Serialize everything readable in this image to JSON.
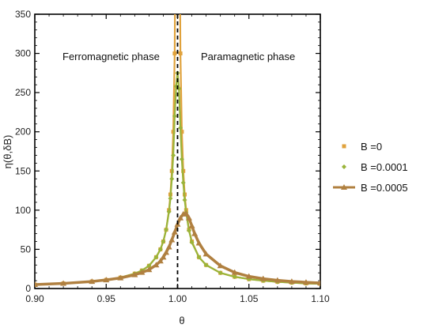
{
  "chart_data": {
    "type": "line",
    "title": "",
    "xlabel": "θ",
    "ylabel": "η(θ,δB)",
    "xlim": [
      0.9,
      1.1
    ],
    "ylim": [
      0,
      350
    ],
    "xticks": [
      "0.90",
      "0.95",
      "1.00",
      "1.05",
      "1.10"
    ],
    "yticks": [
      "0",
      "50",
      "100",
      "150",
      "200",
      "250",
      "300",
      "350"
    ],
    "grid": false,
    "legend_position": "right",
    "annotations": {
      "left": "Ferromagnetic phase",
      "right": "Paramagnetic phase"
    },
    "critical_line_x": 1.0,
    "series": [
      {
        "name": "B =0",
        "color": "#e0a23c",
        "marker": "square",
        "x": [
          0.9,
          0.92,
          0.94,
          0.95,
          0.96,
          0.97,
          0.975,
          0.98,
          0.985,
          0.988,
          0.99,
          0.992,
          0.994,
          0.995,
          0.996,
          0.997,
          0.998,
          0.999,
          1.001,
          1.002,
          1.003,
          1.004,
          1.005,
          1.006,
          1.008,
          1.01,
          1.015,
          1.02,
          1.03,
          1.04,
          1.05,
          1.06,
          1.07,
          1.08,
          1.09,
          1.1
        ],
        "y": [
          5,
          6.5,
          9,
          11,
          14,
          19,
          23,
          29,
          40,
          50,
          60,
          75,
          100,
          120,
          150,
          200,
          300,
          600,
          600,
          300,
          200,
          150,
          120,
          100,
          75,
          60,
          40,
          30,
          20,
          15,
          12,
          10,
          8.5,
          7.5,
          6.5,
          6
        ]
      },
      {
        "name": "B =0.0001",
        "color": "#9ab43a",
        "marker": "diamond",
        "x": [
          0.9,
          0.92,
          0.94,
          0.95,
          0.96,
          0.97,
          0.975,
          0.98,
          0.985,
          0.988,
          0.99,
          0.992,
          0.994,
          0.995,
          0.996,
          0.997,
          0.998,
          0.999,
          1.0,
          1.001,
          1.002,
          1.003,
          1.004,
          1.005,
          1.006,
          1.008,
          1.01,
          1.015,
          1.02,
          1.03,
          1.04,
          1.05,
          1.06,
          1.07,
          1.08,
          1.09,
          1.1
        ],
        "y": [
          5,
          6.5,
          9,
          11,
          14,
          19,
          23,
          29,
          40,
          50,
          60,
          75,
          98,
          115,
          140,
          170,
          220,
          258,
          275,
          255,
          205,
          165,
          135,
          113,
          97,
          74,
          59,
          40,
          30,
          20,
          15,
          12,
          10,
          8.5,
          7.5,
          6.5,
          6
        ]
      },
      {
        "name": "B =0.0005",
        "color": "#b08040",
        "marker": "triangle",
        "x": [
          0.9,
          0.92,
          0.94,
          0.95,
          0.96,
          0.97,
          0.975,
          0.98,
          0.985,
          0.988,
          0.99,
          0.992,
          0.994,
          0.996,
          0.998,
          1.0,
          1.002,
          1.004,
          1.006,
          1.008,
          1.01,
          1.012,
          1.015,
          1.02,
          1.03,
          1.04,
          1.05,
          1.06,
          1.07,
          1.08,
          1.09,
          1.1
        ],
        "y": [
          5,
          6.5,
          9,
          11,
          13.5,
          17.5,
          20.5,
          24,
          30,
          35,
          40,
          46,
          53,
          62,
          72,
          82,
          90,
          95,
          96,
          90,
          80,
          70,
          58,
          44,
          29,
          20.5,
          15.5,
          12.5,
          10.5,
          9,
          8,
          7
        ]
      }
    ]
  }
}
